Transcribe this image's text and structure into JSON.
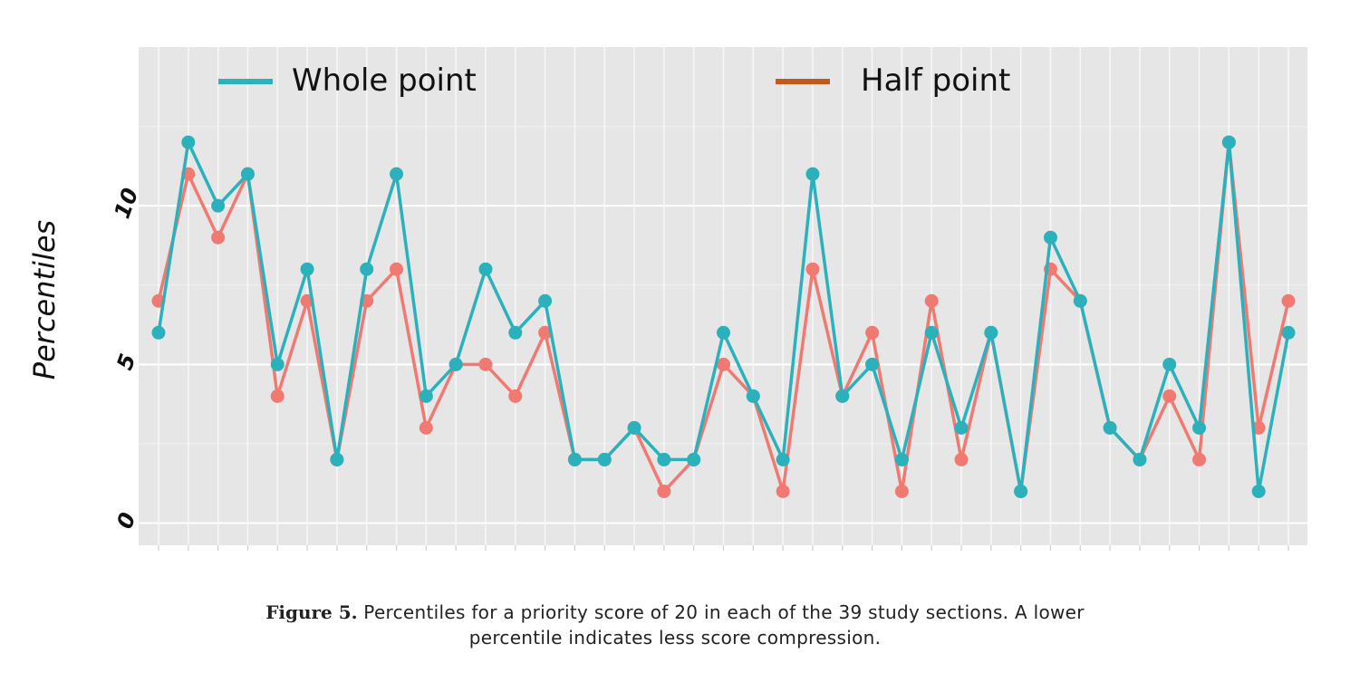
{
  "chart_data": {
    "type": "line",
    "ylabel": "Percentiles",
    "xlabel": "",
    "yticks": [
      "0",
      "5",
      "10"
    ],
    "ylim": [
      -0.7,
      15
    ],
    "grid": true,
    "legend_position": "top",
    "x": [
      1,
      2,
      3,
      4,
      5,
      6,
      7,
      8,
      9,
      10,
      11,
      12,
      13,
      14,
      15,
      16,
      17,
      18,
      19,
      20,
      21,
      22,
      23,
      24,
      25,
      26,
      27,
      28,
      29,
      30,
      31,
      32,
      33,
      34,
      35,
      36,
      37,
      38,
      39
    ],
    "series": [
      {
        "name": "Whole point",
        "color": "#2bb1bb",
        "values": [
          6,
          12,
          10,
          11,
          5,
          8,
          2,
          8,
          11,
          4,
          5,
          8,
          6,
          7,
          2,
          2,
          3,
          2,
          2,
          6,
          4,
          2,
          11,
          4,
          5,
          2,
          6,
          3,
          6,
          1,
          9,
          7,
          3,
          2,
          5,
          3,
          12,
          1,
          6
        ]
      },
      {
        "name": "Half point",
        "color": "#f07a72",
        "legend_color": "#c4591e",
        "values": [
          7,
          11,
          9,
          11,
          4,
          7,
          2,
          7,
          8,
          3,
          5,
          5,
          4,
          6,
          2,
          2,
          3,
          1,
          2,
          5,
          4,
          1,
          8,
          4,
          6,
          1,
          7,
          2,
          6,
          1,
          8,
          7,
          3,
          2,
          4,
          2,
          12,
          3,
          7
        ]
      }
    ]
  },
  "caption": {
    "label": "Figure 5.",
    "line1": "Percentiles for a priority score of 20 in each of the 39 study sections. A lower",
    "line2": "percentile indicates less score compression."
  }
}
